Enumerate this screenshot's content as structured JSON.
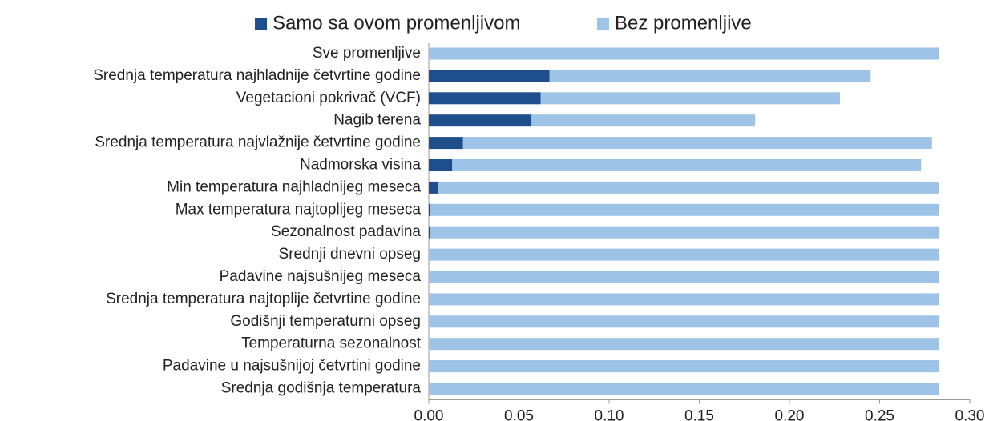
{
  "chart_data": {
    "type": "stacked_barh",
    "categories": [
      "Sve promenljive",
      "Srednja temperatura najhladnije četvrtine godine",
      "Vegetacioni pokrivač (VCF)",
      "Nagib terena",
      "Srednja temperatura najvlažnije četvrtine godine",
      "Nadmorska visina",
      "Min temperatura najhladnijeg meseca",
      "Max temperatura najtoplijeg meseca",
      "Sezonalnost padavina",
      "Srednji dnevni opseg",
      "Padavine najsušnijeg meseca",
      "Srednja temperatura najtoplije četvrtine godine",
      "Godišnji temperaturni opseg",
      "Temperaturna sezonalnost",
      "Padavine u najsušnijoj četvrtini godine",
      "Srednja godišnja temperatura"
    ],
    "series": [
      {
        "name": "Samo sa ovom promenljivom",
        "color": "#1f4e8c",
        "values": [
          0,
          0.067,
          0.062,
          0.057,
          0.019,
          0.013,
          0.005,
          0.001,
          0.001,
          0,
          0,
          0,
          0,
          0,
          0,
          0
        ]
      },
      {
        "name": "Bez promenljive",
        "color": "#9dc3e6",
        "values": [
          0.283,
          0.178,
          0.166,
          0.124,
          0.26,
          0.26,
          0.278,
          0.282,
          0.282,
          0.283,
          0.283,
          0.283,
          0.283,
          0.283,
          0.283,
          0.283
        ]
      }
    ],
    "xlim": [
      0,
      0.3
    ],
    "xticks": [
      {
        "value": 0,
        "label": "0.00"
      },
      {
        "value": 0.05,
        "label": "0.05"
      },
      {
        "value": 0.1,
        "label": "0.10"
      },
      {
        "value": 0.15,
        "label": "0.15"
      },
      {
        "value": 0.2,
        "label": "0.20"
      },
      {
        "value": 0.25,
        "label": "0.25"
      },
      {
        "value": 0.3,
        "label": "0.30"
      }
    ],
    "legend": "top"
  }
}
